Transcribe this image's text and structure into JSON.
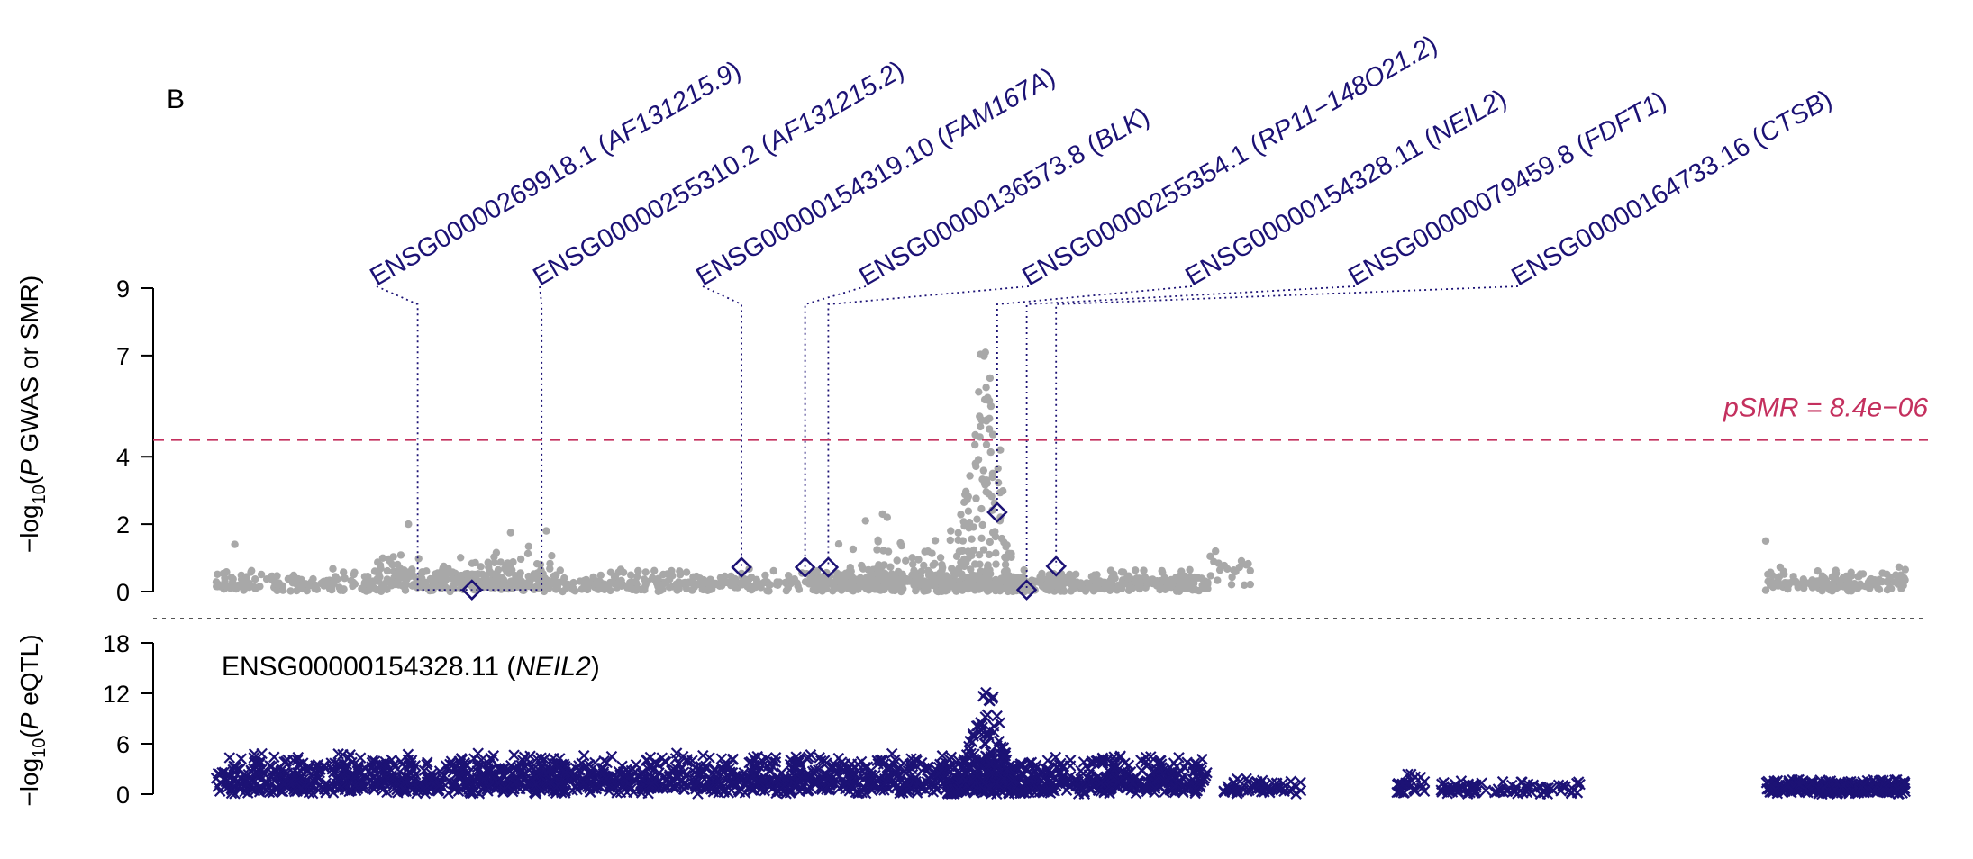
{
  "panel_label": "B",
  "colors": {
    "gwas": "#a8a8a8",
    "eqtl": "#1c1275",
    "smr_marker": "#1c1275",
    "threshold": "#c4305e",
    "gene_label": "#1c1275",
    "separator": "#555555"
  },
  "chart_data": [
    {
      "type": "scatter",
      "panel": "GWAS and SMR",
      "ylabel_parts": [
        "−log",
        "10",
        "(",
        "P",
        " GWAS or SMR)"
      ],
      "yticks": [
        0,
        2,
        4,
        7,
        9
      ],
      "ytick_labels": [
        "0",
        "2",
        "4",
        "7",
        "9"
      ],
      "ylim": [
        0,
        9
      ],
      "threshold": {
        "value": 4.5,
        "label_prefix": "pSMR",
        "label_suffix": " = 8.4e−06",
        "style": "dashed"
      },
      "gwas_clusters": [
        {
          "x0": 0.0,
          "x1": 0.48,
          "base": 0.3,
          "spread": 0.4,
          "n": 700
        },
        {
          "x0": 0.1,
          "x1": 0.22,
          "base": 0.6,
          "spread": 0.8,
          "n": 140
        },
        {
          "x0": 0.4,
          "x1": 0.5,
          "base": 0.5,
          "spread": 1.2,
          "n": 140
        },
        {
          "x0": 0.48,
          "x1": 0.64,
          "base": 0.3,
          "spread": 0.4,
          "n": 400
        },
        {
          "x0": 0.64,
          "x1": 0.67,
          "base": 0.8,
          "spread": 0.6,
          "n": 20
        },
        {
          "x0": 1.0,
          "x1": 1.09,
          "base": 0.3,
          "spread": 0.5,
          "n": 150
        }
      ],
      "gwas_peak": {
        "x": 0.495,
        "width": 0.03,
        "height": 7.3
      },
      "gwas_highlights": [
        {
          "x": 0.124,
          "y": 2.0
        },
        {
          "x": 0.19,
          "y": 1.75
        },
        {
          "x": 0.213,
          "y": 1.8
        },
        {
          "x": 0.43,
          "y": 2.3
        },
        {
          "x": 0.419,
          "y": 2.1
        },
        {
          "x": 0.433,
          "y": 2.2
        },
        {
          "x": 0.474,
          "y": 1.8
        },
        {
          "x": 0.5,
          "y": 5.5
        },
        {
          "x": 0.506,
          "y": 4.2
        },
        {
          "x": 0.49,
          "y": 3.8
        },
        {
          "x": 1.0,
          "y": 1.5
        },
        {
          "x": 0.012,
          "y": 1.4
        }
      ],
      "smr_probes": [
        {
          "gene_id": "ENSG00000269918.1",
          "gene_name": "AF131215.9",
          "x": 0.165,
          "p": 0.05,
          "connector_x": 0.13
        },
        {
          "gene_id": "ENSG00000255310.2",
          "gene_name": "AF131215.2",
          "x": 0.165,
          "p": 0.05,
          "connector_x": 0.21
        },
        {
          "gene_id": "ENSG00000154319.10",
          "gene_name": "FAM167A",
          "x": 0.339,
          "p": 0.72,
          "connector_x": 0.339
        },
        {
          "gene_id": "ENSG00000136573.8",
          "gene_name": "BLK",
          "x": 0.38,
          "p": 0.72,
          "connector_x": 0.38
        },
        {
          "gene_id": "ENSG00000255354.1",
          "gene_name": "RP11−148O21.2",
          "x": 0.395,
          "p": 0.72,
          "connector_x": 0.395
        },
        {
          "gene_id": "ENSG00000154328.11",
          "gene_name": "NEIL2",
          "x": 0.504,
          "p": 2.35,
          "connector_x": 0.504
        },
        {
          "gene_id": "ENSG00000079459.8",
          "gene_name": "FDFT1",
          "x": 0.523,
          "p": 0.05,
          "connector_x": 0.523
        },
        {
          "gene_id": "ENSG00000164733.16",
          "gene_name": "CTSB",
          "x": 0.542,
          "p": 0.75,
          "connector_x": 0.542
        }
      ]
    },
    {
      "type": "scatter",
      "panel": "eQTL",
      "ylabel_parts": [
        "−log",
        "10",
        "(",
        "P",
        " eQTL)"
      ],
      "yticks": [
        0,
        6,
        12,
        18
      ],
      "ytick_labels": [
        "0",
        "6",
        "12",
        "18"
      ],
      "ylim": [
        0,
        18
      ],
      "probe_label": {
        "gene_id": "ENSG00000154328.11",
        "gene_name": "NEIL2"
      },
      "eqtl_clusters": [
        {
          "x0": 0.0,
          "x1": 0.64,
          "base": 1.5,
          "spread": 3.5,
          "n": 1900
        },
        {
          "x0": 0.65,
          "x1": 0.7,
          "base": 0.5,
          "spread": 1.5,
          "n": 60
        },
        {
          "x0": 0.76,
          "x1": 0.78,
          "base": 1.0,
          "spread": 2.0,
          "n": 30
        },
        {
          "x0": 0.79,
          "x1": 0.88,
          "base": 0.5,
          "spread": 1.2,
          "n": 90
        },
        {
          "x0": 1.0,
          "x1": 1.09,
          "base": 0.8,
          "spread": 1.2,
          "n": 300
        }
      ],
      "eqtl_peak": {
        "x": 0.497,
        "width": 0.025,
        "height": 13.5
      }
    }
  ]
}
